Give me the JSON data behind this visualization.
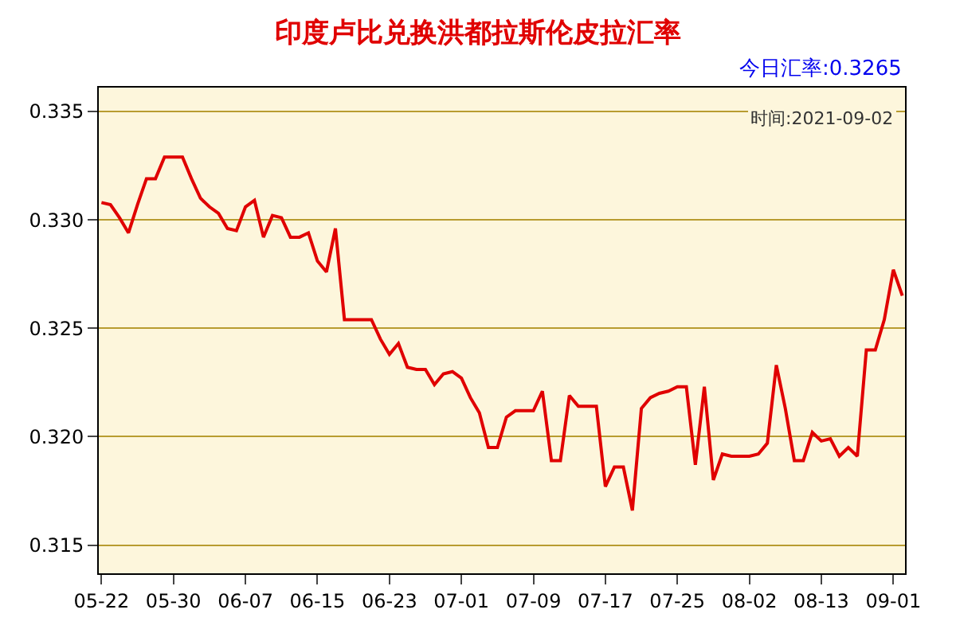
{
  "chart_data": {
    "type": "line",
    "title": "印度卢比兑换洪都拉斯伦皮拉汇率",
    "annotations": [
      "今日汇率:0.3265",
      "时间:2021-09-02"
    ],
    "categories": [
      "05-22",
      null,
      null,
      null,
      null,
      null,
      null,
      null,
      "05-30",
      null,
      null,
      null,
      null,
      null,
      null,
      null,
      "06-07",
      null,
      null,
      null,
      null,
      null,
      null,
      null,
      "06-15",
      null,
      null,
      null,
      null,
      null,
      null,
      null,
      "06-23",
      null,
      null,
      null,
      null,
      null,
      null,
      null,
      "07-01",
      null,
      null,
      null,
      null,
      null,
      null,
      null,
      "07-09",
      null,
      null,
      null,
      null,
      null,
      null,
      null,
      "07-17",
      null,
      null,
      null,
      null,
      null,
      null,
      null,
      "07-25",
      null,
      null,
      null,
      null,
      null,
      null,
      null,
      "08-02",
      null,
      null,
      null,
      null,
      null,
      null,
      null,
      "08-13",
      null,
      null,
      null,
      null,
      null,
      null,
      null,
      "09-01",
      null
    ],
    "series": [
      {
        "color": "#e00000",
        "values": [
          0.3308,
          0.3307,
          0.3301,
          0.3294,
          0.3307,
          0.3319,
          0.3319,
          0.3329,
          0.3329,
          0.3329,
          0.3319,
          0.331,
          0.3306,
          0.3303,
          0.3296,
          0.3295,
          0.3306,
          0.3309,
          0.3292,
          0.3302,
          0.3301,
          0.3292,
          0.3292,
          0.3294,
          0.3281,
          0.3276,
          0.3296,
          0.3254,
          0.3254,
          0.3254,
          0.3254,
          0.3245,
          0.3238,
          0.3243,
          0.3232,
          0.3231,
          0.3231,
          0.3224,
          0.3229,
          0.323,
          0.3227,
          0.3218,
          0.3211,
          0.3195,
          0.3195,
          0.3209,
          0.3212,
          0.3212,
          0.3212,
          0.3221,
          0.3189,
          0.3189,
          0.3219,
          0.3214,
          0.3214,
          0.3214,
          0.3177,
          0.3186,
          0.3186,
          0.3166,
          0.3213,
          0.3218,
          0.322,
          0.3221,
          0.3223,
          0.3223,
          0.3187,
          0.3223,
          0.318,
          0.3192,
          0.3191,
          0.3191,
          0.3191,
          0.3192,
          0.3197,
          0.3233,
          0.3213,
          0.3189,
          0.3189,
          0.3202,
          0.3198,
          0.3199,
          0.3191,
          0.3195,
          0.3191,
          0.324,
          0.324,
          0.3254,
          0.3277,
          0.3265
        ]
      }
    ],
    "ylim": [
      0.3137,
      0.3361
    ],
    "yticks": [
      0.315,
      {
        "value": 0.32,
        "label": "0.320"
      },
      0.325,
      {
        "value": 0.33,
        "label": "0.330"
      },
      0.335
    ],
    "grid": "y",
    "legend": false,
    "marker": "none",
    "line_style": "solid"
  }
}
